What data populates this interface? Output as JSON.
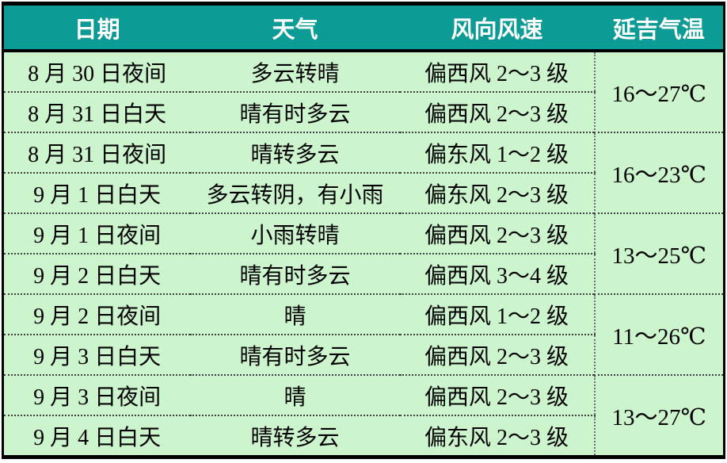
{
  "table": {
    "columns": [
      "日期",
      "天气",
      "风向风速",
      "延吉气温"
    ],
    "rows": [
      {
        "date": "8 月 30 日夜间",
        "weather": "多云转晴",
        "wind": "偏西风 2～3 级"
      },
      {
        "date": "8 月 31 日白天",
        "weather": "晴有时多云",
        "wind": "偏西风 2～3 级"
      },
      {
        "date": "8 月 31 日夜间",
        "weather": "晴转多云",
        "wind": "偏东风 1～2 级"
      },
      {
        "date": "9 月 1 日白天",
        "weather": "多云转阴，有小雨",
        "wind": "偏东风 2～3 级"
      },
      {
        "date": "9 月 1 日夜间",
        "weather": "小雨转晴",
        "wind": "偏西风 2～3 级"
      },
      {
        "date": "9 月 2 日白天",
        "weather": "晴有时多云",
        "wind": "偏西风 3～4 级"
      },
      {
        "date": "9 月 2 日夜间",
        "weather": "晴",
        "wind": "偏西风 1～2 级"
      },
      {
        "date": "9 月 3 日白天",
        "weather": "晴有时多云",
        "wind": "偏西风 2～3 级"
      },
      {
        "date": "9 月 3 日夜间",
        "weather": "晴",
        "wind": "偏西风 2～3 级"
      },
      {
        "date": "9 月 4 日白天",
        "weather": "晴转多云",
        "wind": "偏东风 2～3 级"
      }
    ],
    "temperatures": [
      "16～27℃",
      "16～23℃",
      "13～25℃",
      "11～26℃",
      "13～27℃"
    ]
  },
  "colors": {
    "header_background": "#0D9B96",
    "header_text": "#FFFFFF",
    "body_background": "#CCF4CD",
    "body_text": "#000000",
    "outer_border": "#000000",
    "row_separator": "#3F3F3F",
    "temp_divider": "#707070"
  }
}
